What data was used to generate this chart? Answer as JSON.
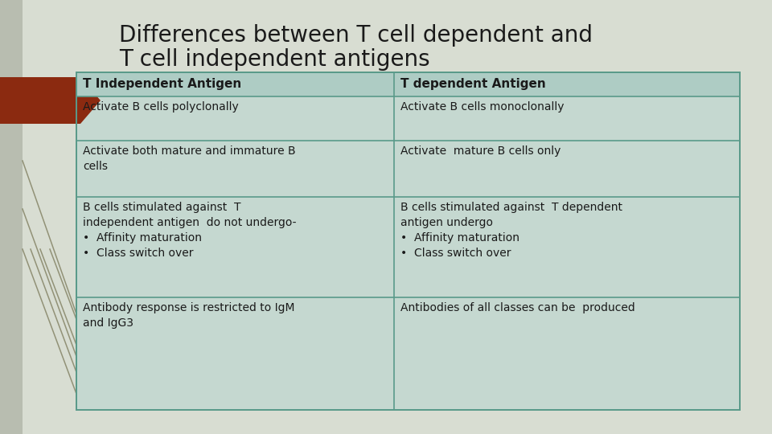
{
  "title_line1": "Differences between T cell dependent and",
  "title_line2": "T cell independent antigens",
  "bg_color": "#d8ddd2",
  "table_bg": "#c5d8d0",
  "header_bg": "#aeccc4",
  "border_color": "#5a9a8a",
  "title_color": "#1a1a1a",
  "arrow_color": "#8b2a10",
  "decorative_lines_color": "#7a7858",
  "headers": [
    "T Independent Antigen",
    "T dependent Antigen"
  ],
  "rows": [
    [
      "Activate B cells polyclonally",
      "Activate B cells monoclonally"
    ],
    [
      "Activate both mature and immature B\ncells",
      "Activate  mature B cells only"
    ],
    [
      "B cells stimulated against  T\nindependent antigen  do not undergo-\n•  Affinity maturation\n•  Class switch over",
      "B cells stimulated against  T dependent\nantigen undergo\n•  Affinity maturation\n•  Class switch over"
    ],
    [
      "Antibody response is restricted to IgM\nand IgG3",
      "Antibodies of all classes can be  produced"
    ]
  ]
}
